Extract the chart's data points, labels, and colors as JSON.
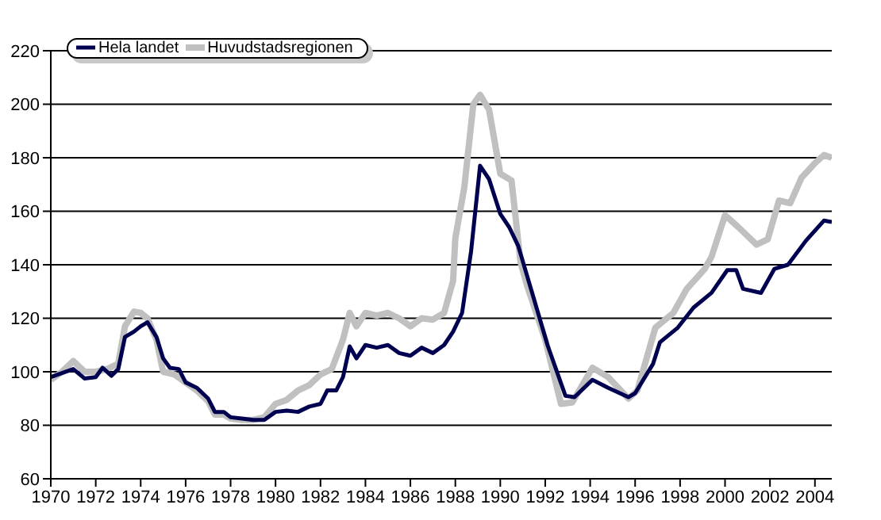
{
  "chart_data": {
    "type": "line",
    "xlim": [
      1970,
      2004.75
    ],
    "xticks": [
      1970,
      1972,
      1974,
      1976,
      1978,
      1980,
      1982,
      1984,
      1986,
      1988,
      1990,
      1992,
      1994,
      1996,
      1998,
      2000,
      2002,
      2004
    ],
    "ylim": [
      60,
      220
    ],
    "yticks": [
      60,
      80,
      100,
      120,
      140,
      160,
      180,
      200,
      220
    ],
    "grid": "y",
    "legend": "top left",
    "marker": "none",
    "line_style": "solid",
    "series": [
      {
        "name": "Hela landet",
        "color": "#000050",
        "x": [
          1970,
          1970.5,
          1971,
          1971.5,
          1972,
          1972.3,
          1972.7,
          1973,
          1973.3,
          1973.7,
          1974,
          1974.3,
          1974.7,
          1975,
          1975.3,
          1975.7,
          1976,
          1976.5,
          1977,
          1977.3,
          1977.7,
          1978,
          1978.5,
          1979,
          1979.5,
          1980,
          1980.5,
          1981,
          1981.5,
          1982,
          1982.3,
          1982.7,
          1983,
          1983.3,
          1983.6,
          1984,
          1984.5,
          1985,
          1985.5,
          1986,
          1986.5,
          1987,
          1987.5,
          1987.9,
          1988.3,
          1988.7,
          1989.1,
          1989.5,
          1990,
          1990.4,
          1990.8,
          1991.4,
          1992.1,
          1992.9,
          1993.3,
          1994.1,
          1994.8,
          1995.7,
          1996,
          1996.8,
          1997.1,
          1997.9,
          1998.6,
          1999.4,
          2000.1,
          2000.5,
          2000.8,
          2001.6,
          2002.2,
          2002.8,
          2003.6,
          2004.4,
          2004.75
        ],
        "values": [
          98,
          99.5,
          101,
          97.5,
          98,
          101.5,
          98.5,
          101,
          113,
          115,
          117,
          118.5,
          113,
          105,
          101.5,
          101,
          96,
          94,
          90,
          85,
          85,
          83,
          82.5,
          82,
          82,
          85,
          85.5,
          85,
          87,
          88,
          93,
          93,
          98,
          109.5,
          105,
          110,
          109,
          110,
          107,
          106,
          109,
          107,
          110,
          115,
          122,
          145,
          177,
          172,
          159,
          154,
          147,
          130,
          110,
          91,
          90.5,
          97,
          94,
          90.5,
          92,
          103,
          111,
          116.5,
          124,
          129.5,
          138,
          138,
          131,
          129.5,
          138.5,
          140,
          149,
          156.5,
          156
        ]
      },
      {
        "name": "Huvudstadsregionen",
        "color": "#c0c0c0",
        "x": [
          1970,
          1970.5,
          1971,
          1971.5,
          1972,
          1972.5,
          1973,
          1973.3,
          1973.7,
          1974,
          1974.3,
          1974.7,
          1975,
          1975.5,
          1976,
          1976.5,
          1977,
          1977.3,
          1977.7,
          1978,
          1978.5,
          1979,
          1979.5,
          1980,
          1980.5,
          1981,
          1981.5,
          1982,
          1982.5,
          1983,
          1983.3,
          1983.6,
          1984,
          1984.5,
          1985,
          1985.5,
          1986,
          1986.5,
          1987,
          1987.5,
          1987.9,
          1988,
          1988.4,
          1988.8,
          1989.1,
          1989.5,
          1990,
          1990.5,
          1990.9,
          1991.2,
          1992,
          1992.7,
          1993.2,
          1994.1,
          1994.8,
          1995.7,
          1996.1,
          1996.9,
          1997.7,
          1998.3,
          1999.1,
          1999.4,
          2000,
          2000.6,
          2001.4,
          2001.9,
          2002.4,
          2002.9,
          2003.4,
          2004,
          2004.4,
          2004.75
        ],
        "values": [
          97,
          100,
          104,
          100,
          100,
          101,
          103,
          117,
          122.5,
          122,
          120,
          112,
          100,
          99,
          96,
          93,
          89,
          84,
          84,
          82.5,
          82,
          82,
          83,
          88,
          89.5,
          93,
          95,
          99,
          101,
          112,
          122,
          117,
          122,
          121,
          122,
          120,
          117,
          120,
          119.5,
          122,
          134,
          150,
          169,
          200,
          203.5,
          198,
          174,
          171.5,
          141,
          132,
          112,
          88,
          88.5,
          101.5,
          98,
          90,
          93,
          116.5,
          122,
          131,
          138.5,
          143,
          158.5,
          154,
          147.5,
          149.5,
          164,
          163,
          172.5,
          178,
          181,
          180
        ]
      }
    ]
  }
}
